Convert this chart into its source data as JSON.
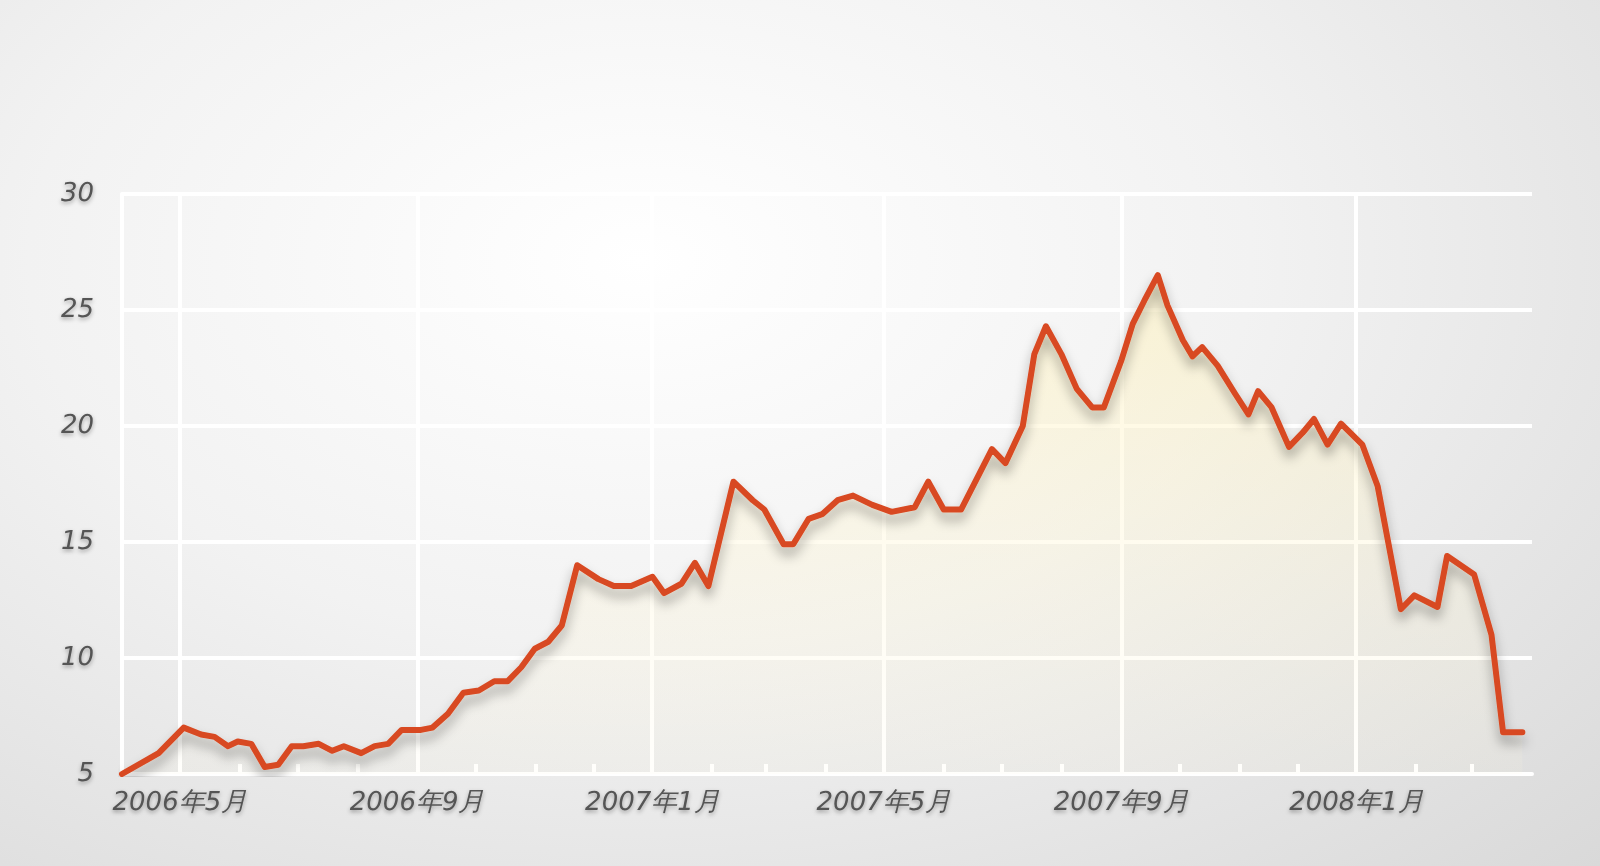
{
  "chart_data": {
    "type": "area",
    "marker": "none",
    "grid": true,
    "line_style": "solid",
    "x": [
      "2006-04-01",
      "2006-04-20",
      "2006-05-03",
      "2006-05-12",
      "2006-05-19",
      "2006-05-26",
      "2006-05-31",
      "2006-06-07",
      "2006-06-14",
      "2006-06-21",
      "2006-06-28",
      "2006-07-04",
      "2006-07-12",
      "2006-07-19",
      "2006-07-25",
      "2006-08-03",
      "2006-08-10",
      "2006-08-17",
      "2006-08-24",
      "2006-09-03",
      "2006-09-09",
      "2006-09-17",
      "2006-09-25",
      "2006-10-03",
      "2006-10-11",
      "2006-10-18",
      "2006-10-25",
      "2006-11-01",
      "2006-11-08",
      "2006-11-15",
      "2006-11-23",
      "2006-12-04",
      "2006-12-12",
      "2006-12-21",
      "2007-01-01",
      "2007-01-07",
      "2007-01-16",
      "2007-01-23",
      "2007-01-30",
      "2007-02-12",
      "2007-02-22",
      "2007-02-28",
      "2007-03-10",
      "2007-03-15",
      "2007-03-23",
      "2007-03-30",
      "2007-04-07",
      "2007-04-15",
      "2007-04-25",
      "2007-05-05",
      "2007-05-17",
      "2007-05-24",
      "2007-06-01",
      "2007-06-10",
      "2007-06-18",
      "2007-06-26",
      "2007-07-03",
      "2007-07-12",
      "2007-07-18",
      "2007-07-24",
      "2007-08-01",
      "2007-08-09",
      "2007-08-17",
      "2007-08-23",
      "2007-09-01",
      "2007-09-07",
      "2007-09-13",
      "2007-09-20",
      "2007-09-25",
      "2007-10-03",
      "2007-10-08",
      "2007-10-13",
      "2007-10-21",
      "2007-10-30",
      "2007-11-06",
      "2007-11-11",
      "2007-11-18",
      "2007-11-27",
      "2007-12-04",
      "2007-12-10",
      "2007-12-17",
      "2007-12-24",
      "2008-01-04",
      "2008-01-12",
      "2008-01-24",
      "2008-01-31",
      "2008-02-12",
      "2008-02-17",
      "2008-03-02",
      "2008-03-11",
      "2008-03-17",
      "2008-03-27"
    ],
    "series": [
      {
        "color": "#d84a22",
        "values": [
          5.0,
          5.9,
          7.0,
          6.7,
          6.6,
          6.2,
          6.4,
          6.3,
          5.3,
          5.4,
          6.2,
          6.2,
          6.3,
          6.0,
          6.2,
          5.9,
          6.2,
          6.3,
          6.9,
          6.9,
          7.0,
          7.6,
          8.5,
          8.6,
          9.0,
          9.0,
          9.6,
          10.4,
          10.7,
          11.4,
          14.0,
          13.4,
          13.1,
          13.1,
          13.5,
          12.8,
          13.2,
          14.1,
          13.1,
          17.6,
          16.8,
          16.4,
          14.9,
          14.9,
          16.0,
          16.2,
          16.8,
          17.0,
          16.6,
          16.3,
          16.5,
          17.6,
          16.4,
          16.4,
          17.7,
          19.0,
          18.4,
          20.0,
          23.1,
          24.3,
          23.1,
          21.6,
          20.8,
          20.8,
          22.8,
          24.4,
          25.4,
          26.5,
          25.2,
          23.7,
          23.0,
          23.4,
          22.6,
          21.4,
          20.5,
          21.5,
          20.8,
          19.1,
          19.7,
          20.3,
          19.2,
          20.1,
          19.2,
          17.4,
          12.1,
          12.7,
          12.2,
          14.4,
          13.6,
          11.0,
          6.8,
          6.8
        ]
      }
    ],
    "xlim": [
      "2006-04-01",
      "2008-04-01"
    ],
    "xticks": [
      {
        "value": "2006-05",
        "label": "2006年5月"
      },
      {
        "value": "2006-06",
        "label": null
      },
      {
        "value": "2006-07",
        "label": null
      },
      {
        "value": "2006-08",
        "label": null
      },
      {
        "value": "2006-09",
        "label": "2006年9月"
      },
      {
        "value": "2006-10",
        "label": null
      },
      {
        "value": "2006-11",
        "label": null
      },
      {
        "value": "2006-12",
        "label": null
      },
      {
        "value": "2007-01",
        "label": "2007年1月"
      },
      {
        "value": "2007-02",
        "label": null
      },
      {
        "value": "2007-03",
        "label": null
      },
      {
        "value": "2007-04",
        "label": null
      },
      {
        "value": "2007-05",
        "label": "2007年5月"
      },
      {
        "value": "2007-06",
        "label": null
      },
      {
        "value": "2007-07",
        "label": null
      },
      {
        "value": "2007-08",
        "label": null
      },
      {
        "value": "2007-09",
        "label": "2007年9月"
      },
      {
        "value": "2007-10",
        "label": null
      },
      {
        "value": "2007-11",
        "label": null
      },
      {
        "value": "2007-12",
        "label": null
      },
      {
        "value": "2008-01",
        "label": "2008年1月"
      },
      {
        "value": "2008-02",
        "label": null
      },
      {
        "value": "2008-03",
        "label": null
      }
    ],
    "ylim": [
      5,
      30
    ],
    "yticks": [
      5,
      10,
      15,
      20,
      25,
      30
    ]
  }
}
